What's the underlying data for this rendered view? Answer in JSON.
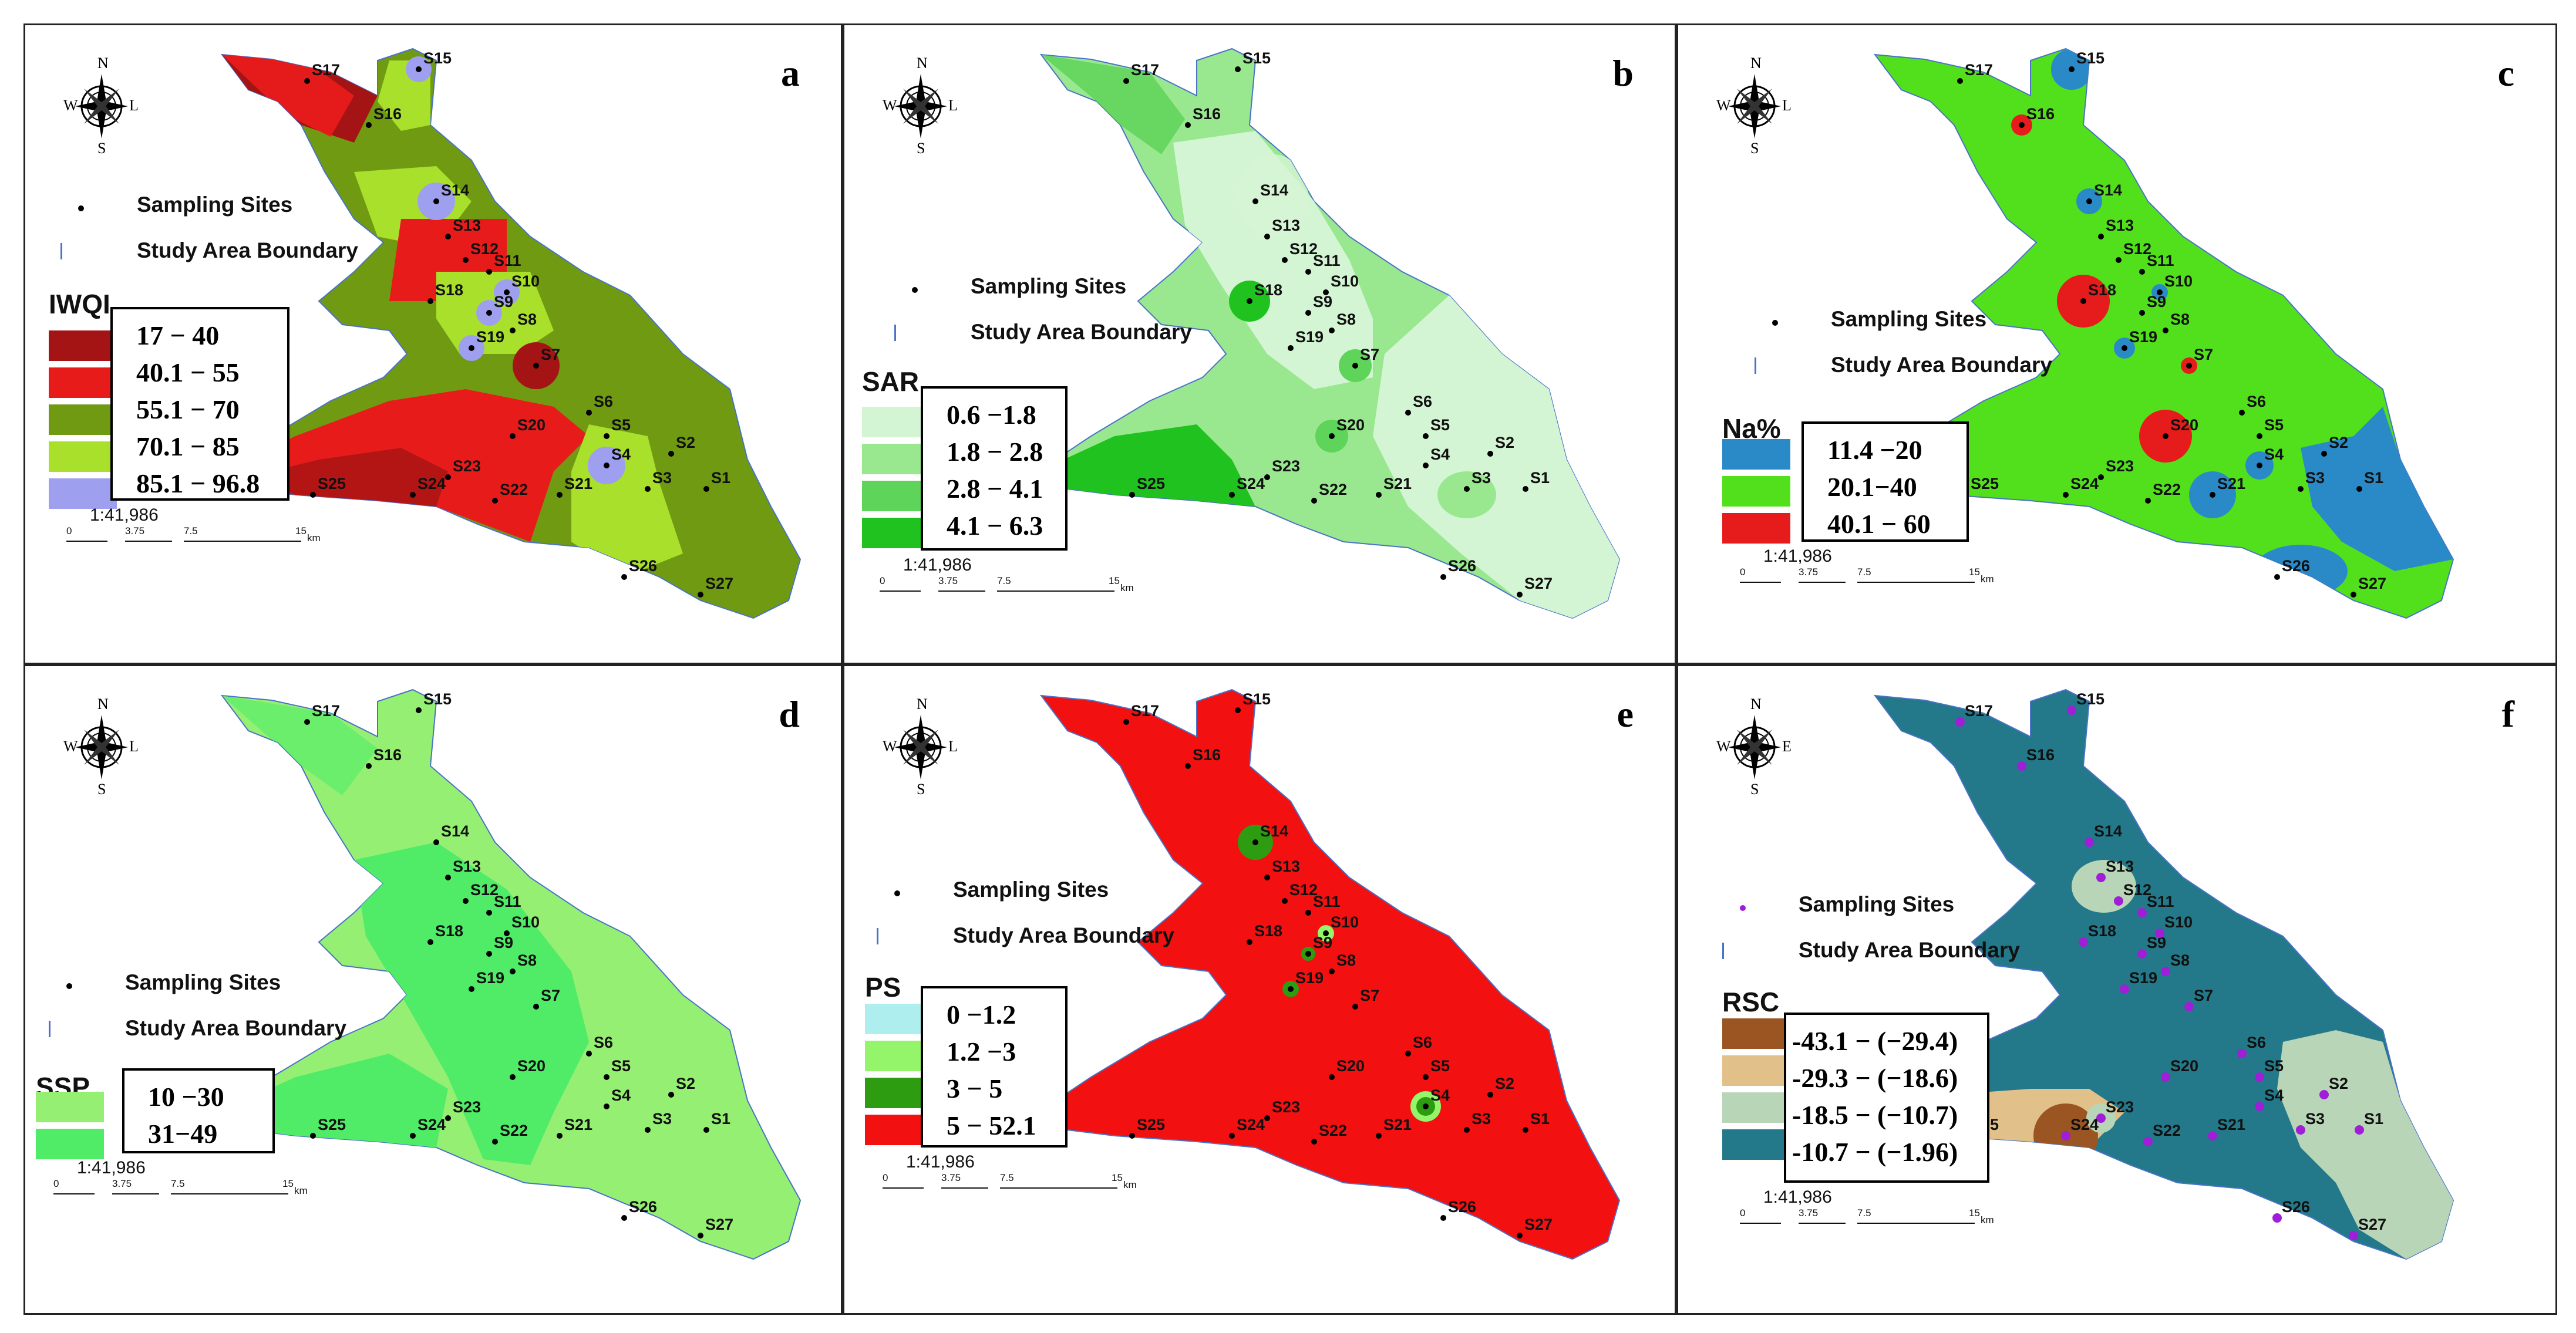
{
  "compass": {
    "n": "N",
    "s": "S",
    "w": "W",
    "e_a": "L",
    "e_f": "E"
  },
  "common": {
    "sampling_sites": "Sampling Sites",
    "study_area_boundary": "Study Area Boundary",
    "scale_ratio": "1:41,986",
    "scale_ticks": [
      "0",
      "3.75",
      "7.5",
      "15"
    ],
    "scale_unit": "km"
  },
  "sites": [
    "S1",
    "S2",
    "S3",
    "S4",
    "S5",
    "S6",
    "S7",
    "S8",
    "S9",
    "S10",
    "S11",
    "S12",
    "S13",
    "S14",
    "S15",
    "S16",
    "S17",
    "S18",
    "S19",
    "S20",
    "S21",
    "S22",
    "S23",
    "S24",
    "S25",
    "S26",
    "S27"
  ],
  "panels": [
    {
      "letter": "a",
      "index": "IWQI",
      "classes": [
        {
          "label": "17 − 40",
          "color": "#a51414"
        },
        {
          "label": "40.1 − 55",
          "color": "#e81b1b"
        },
        {
          "label": "55.1 − 70",
          "color": "#6f9a12"
        },
        {
          "label": "70.1 − 85",
          "color": "#a8e02c"
        },
        {
          "label": "85.1 − 96.8",
          "color": "#9f9ff0"
        }
      ]
    },
    {
      "letter": "b",
      "index": "SAR",
      "classes": [
        {
          "label": "0.6 −1.8",
          "color": "#d4f5d4"
        },
        {
          "label": "1.8 − 2.8",
          "color": "#99e890"
        },
        {
          "label": "2.8 − 4.1",
          "color": "#5fd45a"
        },
        {
          "label": "4.1 − 6.3",
          "color": "#1fc21f"
        }
      ]
    },
    {
      "letter": "c",
      "index": "Na%",
      "classes": [
        {
          "label": "11.4 −20",
          "color": "#2a8ac8"
        },
        {
          "label": "20.1−40",
          "color": "#52e01c"
        },
        {
          "label": "40.1 − 60",
          "color": "#e61b1b"
        }
      ]
    },
    {
      "letter": "d",
      "index": "SSP",
      "classes": [
        {
          "label": "10 −30",
          "color": "#95ef72"
        },
        {
          "label": "31−49",
          "color": "#50ec68"
        }
      ]
    },
    {
      "letter": "e",
      "index": "PS",
      "classes": [
        {
          "label": "0 −1.2",
          "color": "#aeeeee"
        },
        {
          "label": "1.2 −3",
          "color": "#94f46a"
        },
        {
          "label": "3 − 5",
          "color": "#2e9c10"
        },
        {
          "label": "5 − 52.1",
          "color": "#f21010"
        }
      ]
    },
    {
      "letter": "f",
      "index": "RSC",
      "classes": [
        {
          "label": "-43.1 − (−29.4)",
          "color": "#9a5522"
        },
        {
          "label": "-29.3 − (−18.6)",
          "color": "#e2c08a"
        },
        {
          "label": "-18.5 − (−10.7)",
          "color": "#b9d5b7"
        },
        {
          "label": "-10.7 − (−1.96)",
          "color": "#23798a"
        }
      ]
    }
  ]
}
